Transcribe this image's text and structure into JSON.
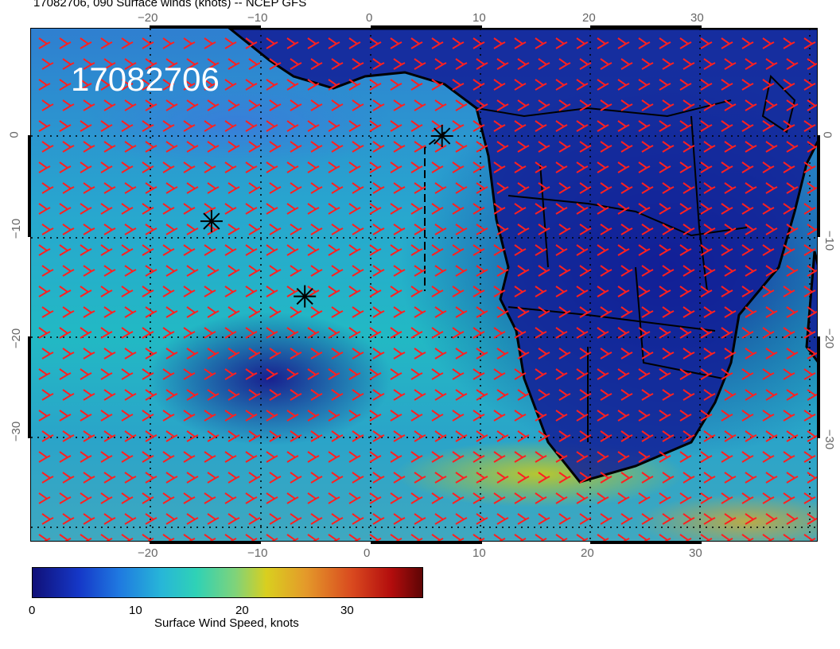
{
  "header": {
    "title": "17082706, 090 Surface winds (knots) -- NCEP GFS",
    "map_label": "17082706"
  },
  "axes": {
    "x_ticks": [
      "−20",
      "−10",
      "0",
      "10",
      "20",
      "30"
    ],
    "y_ticks": [
      "0",
      "−10",
      "−20",
      "−30"
    ]
  },
  "colorbar": {
    "label": "Surface Wind Speed, knots",
    "ticks": [
      "0",
      "10",
      "20",
      "30"
    ],
    "range": [
      0,
      37
    ]
  },
  "colors": {
    "barb": "#ff2020",
    "land_outline": "#000000",
    "label_text": "#ffffff"
  },
  "markers": [
    {
      "name": "asterisk-marker",
      "lon": 6.5,
      "lat": 0
    },
    {
      "name": "asterisk-marker",
      "lon": -14.5,
      "lat": -8.5
    },
    {
      "name": "asterisk-marker",
      "lon": -6,
      "lat": -16
    }
  ]
}
